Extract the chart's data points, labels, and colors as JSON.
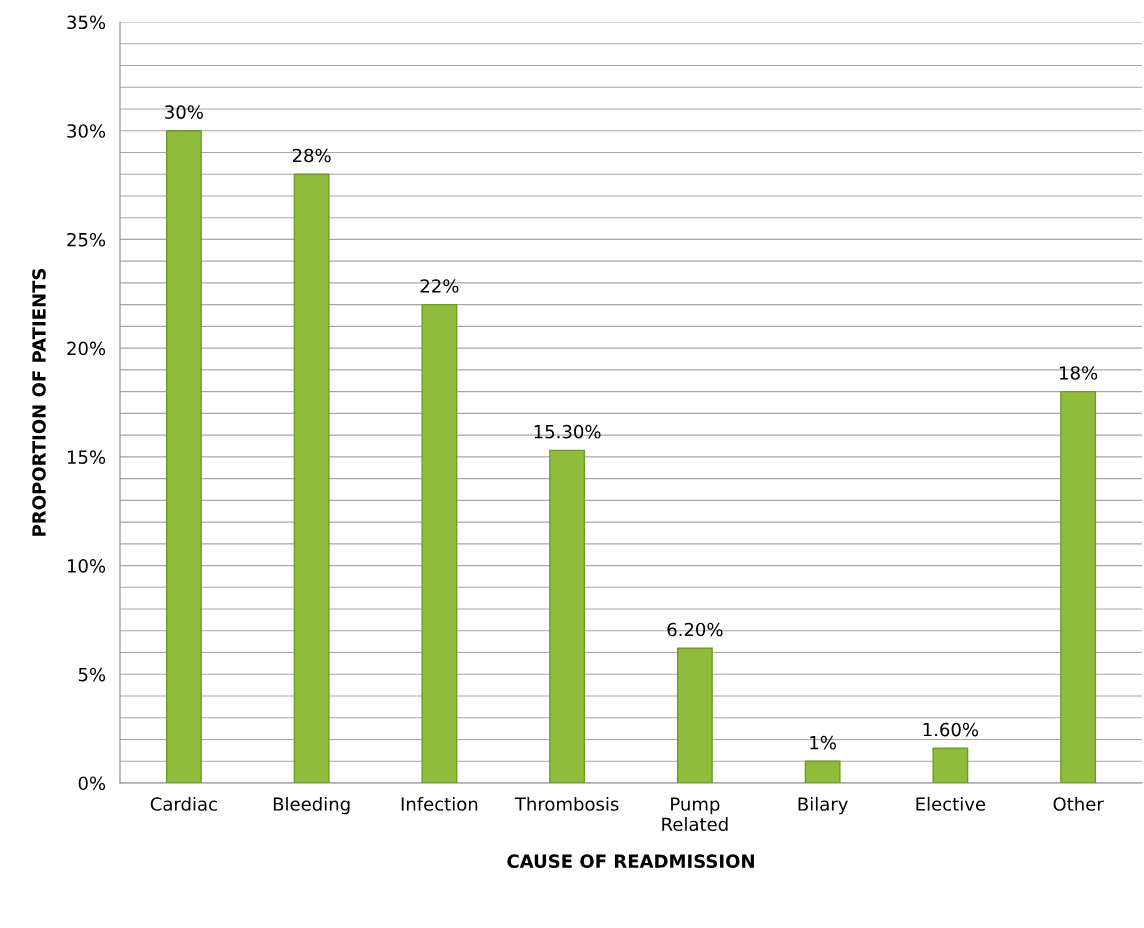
{
  "chart_data": {
    "type": "bar",
    "xlabel": "CAUSE OF READMISSION",
    "ylabel": "PROPORTION OF PATIENTS",
    "categories": [
      "Cardiac",
      "Bleeding",
      "Infection",
      "Thrombosis",
      "Pump Related",
      "Bilary",
      "Elective",
      "Other"
    ],
    "values": [
      30,
      28,
      22,
      15.3,
      6.2,
      1,
      1.6,
      18
    ],
    "value_labels": [
      "30%",
      "28%",
      "22%",
      "15.30%",
      "6.20%",
      "1%",
      "1.60%",
      "18%"
    ],
    "color": "#8fbc3c",
    "ylim": [
      0,
      35
    ],
    "yticks": [
      {
        "value": 0,
        "label": "0%"
      },
      {
        "value": 1,
        "label": null
      },
      {
        "value": 2,
        "label": null
      },
      {
        "value": 3,
        "label": null
      },
      {
        "value": 4,
        "label": null
      },
      {
        "value": 5,
        "label": "5%"
      },
      {
        "value": 6,
        "label": null
      },
      {
        "value": 7,
        "label": null
      },
      {
        "value": 8,
        "label": null
      },
      {
        "value": 9,
        "label": null
      },
      {
        "value": 10,
        "label": "10%"
      },
      {
        "value": 11,
        "label": null
      },
      {
        "value": 12,
        "label": null
      },
      {
        "value": 13,
        "label": null
      },
      {
        "value": 14,
        "label": null
      },
      {
        "value": 15,
        "label": "15%"
      },
      {
        "value": 16,
        "label": null
      },
      {
        "value": 17,
        "label": null
      },
      {
        "value": 18,
        "label": null
      },
      {
        "value": 19,
        "label": null
      },
      {
        "value": 20,
        "label": "20%"
      },
      {
        "value": 21,
        "label": null
      },
      {
        "value": 22,
        "label": null
      },
      {
        "value": 23,
        "label": null
      },
      {
        "value": 24,
        "label": null
      },
      {
        "value": 25,
        "label": "25%"
      },
      {
        "value": 26,
        "label": null
      },
      {
        "value": 27,
        "label": null
      },
      {
        "value": 28,
        "label": null
      },
      {
        "value": 29,
        "label": null
      },
      {
        "value": 30,
        "label": "30%"
      },
      {
        "value": 31,
        "label": null
      },
      {
        "value": 32,
        "label": null
      },
      {
        "value": 33,
        "label": null
      },
      {
        "value": 34,
        "label": null
      },
      {
        "value": 35,
        "label": "35%"
      }
    ],
    "grid": "y"
  }
}
